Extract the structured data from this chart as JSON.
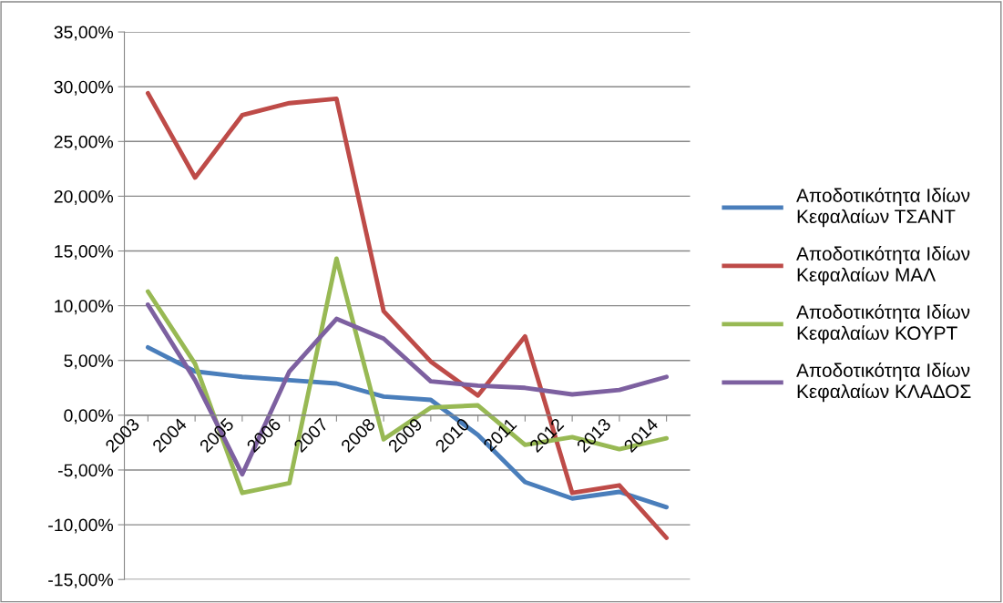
{
  "chart_data": {
    "type": "line",
    "categories": [
      "2003",
      "2004",
      "2005",
      "2006",
      "2007",
      "2008",
      "2009",
      "2010",
      "2011",
      "2012",
      "2013",
      "2014"
    ],
    "series": [
      {
        "name": "Αποδοτικότητα Ιδίων Κεφαλαίων ΤΣΑΝΤ",
        "color": "#4a7ebb",
        "values": [
          6.2,
          4.0,
          3.5,
          3.2,
          2.9,
          1.7,
          1.4,
          -1.8,
          -6.1,
          -7.6,
          -7.0,
          -8.4
        ]
      },
      {
        "name": "Αποδοτικότητα Ιδίων Κεφαλαίων ΜΑΛ",
        "color": "#be4b48",
        "values": [
          29.4,
          21.7,
          27.4,
          28.5,
          28.9,
          9.5,
          4.9,
          1.8,
          7.2,
          -7.1,
          -6.4,
          -11.2
        ]
      },
      {
        "name": "Αποδοτικότητα Ιδίων Κεφαλαίων ΚΟΥΡΤ",
        "color": "#98b954",
        "values": [
          11.3,
          4.7,
          -7.1,
          -6.2,
          14.3,
          -2.2,
          0.7,
          0.9,
          -2.7,
          -2.0,
          -3.1,
          -2.1
        ]
      },
      {
        "name": "Αποδοτικότητα Ιδίων Κεφαλαίων ΚΛΑΔΟΣ",
        "color": "#7d60a0",
        "values": [
          10.1,
          3.2,
          -5.4,
          4.0,
          8.8,
          7.0,
          3.1,
          2.7,
          2.5,
          1.9,
          2.3,
          3.5
        ]
      }
    ],
    "ylim": [
      -15,
      35
    ],
    "yticks": [
      {
        "value": -15,
        "label": "-15,00%"
      },
      {
        "value": -10,
        "label": "-10,00%"
      },
      {
        "value": -5,
        "label": "-5,00%"
      },
      {
        "value": 0,
        "label": "0,00%"
      },
      {
        "value": 5,
        "label": "5,00%"
      },
      {
        "value": 10,
        "label": "10,00%"
      },
      {
        "value": 15,
        "label": "15,00%"
      },
      {
        "value": 20,
        "label": "20,00%"
      },
      {
        "value": 25,
        "label": "25,00%"
      },
      {
        "value": 30,
        "label": "30,00%"
      },
      {
        "value": 35,
        "label": "35,00%"
      }
    ],
    "grid": "y",
    "legend": "right",
    "marker": "none",
    "line_style": "solid"
  }
}
